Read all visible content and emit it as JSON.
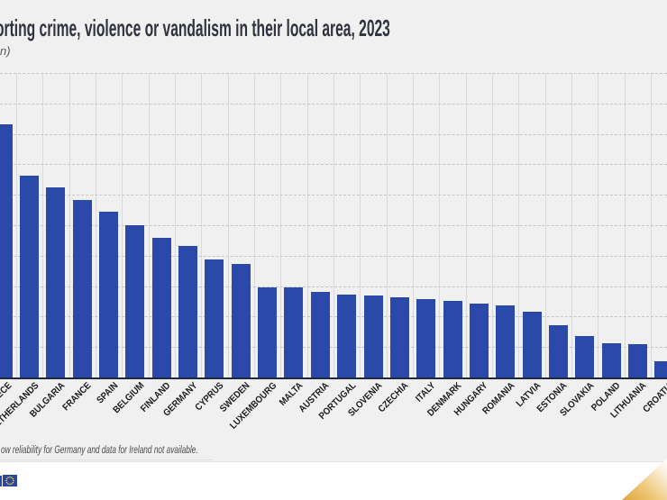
{
  "header": {
    "title": "orting crime, violence or vandalism in their local area, 2023",
    "subtitle": "n)"
  },
  "chart_data": {
    "type": "bar",
    "title": "orting crime, violence or vandalism in their local area, 2023",
    "categories": [
      "GREECE",
      "NETHERLANDS",
      "BULGARIA",
      "FRANCE",
      "SPAIN",
      "BELGIUM",
      "FINLAND",
      "GERMANY",
      "CYPRUS",
      "SWEDEN",
      "LUXEMBOURG",
      "MALTA",
      "AUSTRIA",
      "PORTUGAL",
      "SLOVENIA",
      "CZECHIA",
      "ITALY",
      "DENMARK",
      "HUNGARY",
      "ROMANIA",
      "LATVIA",
      "ESTONIA",
      "SLOVAKIA",
      "POLAND",
      "LITHUANIA",
      "CROATIA"
    ],
    "values": [
      20.8,
      16.6,
      15.6,
      14.6,
      13.6,
      12.5,
      11.5,
      10.8,
      9.7,
      9.3,
      7.4,
      7.4,
      7.0,
      6.8,
      6.7,
      6.6,
      6.4,
      6.3,
      6.1,
      5.9,
      5.4,
      4.3,
      3.4,
      2.8,
      2.7,
      1.3
    ],
    "xlabel": "",
    "ylabel": "",
    "ylim": [
      0,
      25
    ],
    "y_gridline_step": 2.5,
    "y_axis_labels_visible": false,
    "x_tick_label_rotation": 45,
    "grid": "horizontal-dashed and vertical-solid",
    "legend_position": "none",
    "bar_color": "#2A49A8"
  },
  "footnote": "ow reliability for Germany and data for Ireland not available.",
  "footer": {
    "logo_icon": "eu-flag"
  },
  "colors": {
    "bar": "#2A49A8",
    "axis": "#1F2A40",
    "grid": "#D9DADD",
    "grid_dashed": "#C5C7CB",
    "title_text": "#30333D",
    "eu_blue": "#2A46A0",
    "star_yellow": "#FFD617",
    "gold_corner": "#DFA63C",
    "background": "#F0F0F1"
  }
}
